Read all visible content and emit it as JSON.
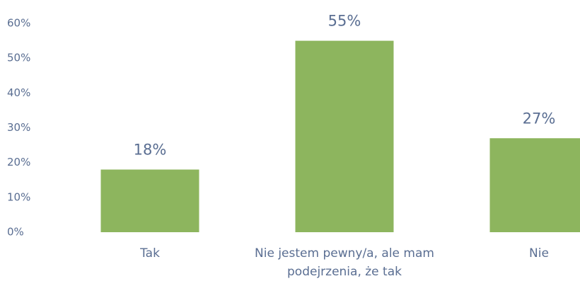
{
  "chart_data": {
    "type": "bar",
    "categories": [
      "Tak",
      "Nie jestem pewny/a, ale mam podejrzenia, że tak",
      "Nie"
    ],
    "values": [
      18,
      55,
      27
    ],
    "value_labels": [
      "18%",
      "55%",
      "27%"
    ],
    "color": "#8db55e",
    "ylim": [
      0,
      60
    ],
    "yticks": [
      {
        "value": 0,
        "label": "0%"
      },
      {
        "value": 10,
        "label": "10%"
      },
      {
        "value": 20,
        "label": "20%"
      },
      {
        "value": 30,
        "label": "30%"
      },
      {
        "value": 40,
        "label": "40%"
      },
      {
        "value": 50,
        "label": "50%"
      },
      {
        "value": 60,
        "label": "60%"
      }
    ],
    "grid": false
  }
}
